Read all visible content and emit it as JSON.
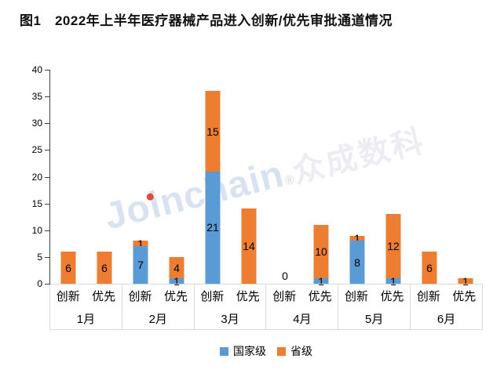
{
  "title": "图1　2022年上半年医疗器械产品进入创新/优先审批通道情况",
  "watermark": {
    "latin": "Joinchain",
    "reg": "®",
    "cjk": "众成数科",
    "latin_color": "#d9e2f1",
    "cjk_color": "#ececf2",
    "dot_color": "#e8483c"
  },
  "legend": [
    {
      "label": "国家级",
      "color": "#5B9BD5"
    },
    {
      "label": "省级",
      "color": "#ED7D31"
    }
  ],
  "chart_data": {
    "type": "bar",
    "stacked": true,
    "title": "图1　2022年上半年医疗器械产品进入创新/优先审批通道情况",
    "months": [
      "1月",
      "2月",
      "3月",
      "4月",
      "5月",
      "6月"
    ],
    "subcategories": [
      "创新",
      "优先"
    ],
    "y_ticks": [
      0,
      5,
      10,
      15,
      20,
      25,
      30,
      35,
      40
    ],
    "ylim": [
      0,
      40
    ],
    "grid": false,
    "legend_position": "bottom",
    "series": [
      {
        "name": "国家级",
        "color": "#5B9BD5",
        "values": [
          0,
          0,
          7,
          1,
          21,
          0,
          0,
          1,
          8,
          1,
          0,
          0
        ]
      },
      {
        "name": "省级",
        "color": "#ED7D31",
        "values": [
          6,
          6,
          1,
          4,
          15,
          14,
          0,
          10,
          1,
          12,
          6,
          1
        ]
      }
    ],
    "totals": [
      6,
      6,
      8,
      5,
      36,
      14,
      0,
      11,
      9,
      13,
      6,
      1
    ]
  }
}
